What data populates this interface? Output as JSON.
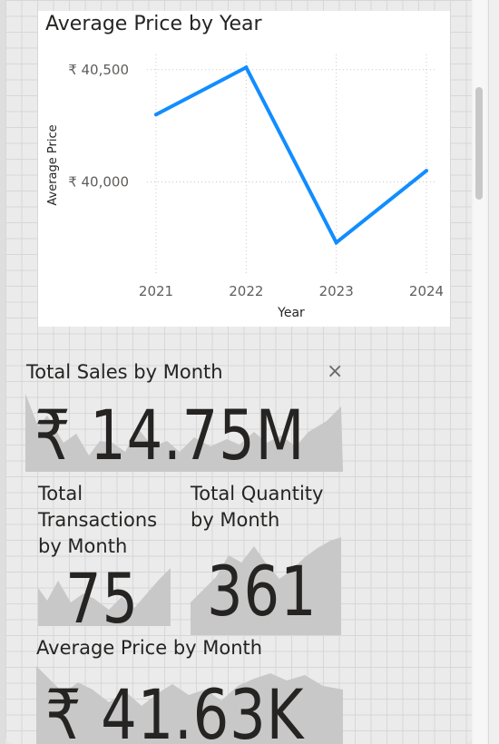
{
  "line_chart": {
    "title": "Average Price by Year",
    "chart_data": {
      "type": "line",
      "title": "Average Price by Year",
      "xlabel": "Year",
      "ylabel": "Average Price",
      "categories": [
        "2021",
        "2022",
        "2023",
        "2024"
      ],
      "values": [
        40300,
        40510,
        39730,
        40050
      ],
      "ylim": [
        39590,
        40600
      ],
      "yticks": [
        {
          "value": 40000,
          "label": "₹ 40,000"
        },
        {
          "value": 40500,
          "label": "₹ 40,500"
        }
      ],
      "color": "#118DFF"
    }
  },
  "cards": {
    "total_sales": {
      "title": "Total Sales by Month",
      "value": "₹ 14.75M"
    },
    "total_transactions": {
      "title_lines": [
        "Total",
        "Transactions",
        "by Month"
      ],
      "value": "75"
    },
    "total_quantity": {
      "title_lines": [
        "Total Quantity",
        "by Month"
      ],
      "value": "361"
    },
    "average_price": {
      "title": "Average Price by Month",
      "value": "₹ 41.63K"
    }
  },
  "colors": {
    "line": "#118DFF",
    "sparkline_fill": "#c8c8c8",
    "text": "#252423"
  }
}
